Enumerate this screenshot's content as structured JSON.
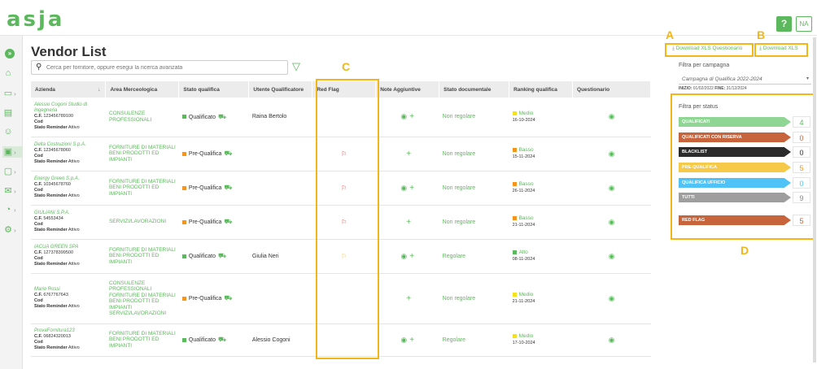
{
  "app": {
    "logo": "asja",
    "help": "?",
    "user_initials": "NA"
  },
  "page": {
    "title": "Vendor List"
  },
  "search": {
    "placeholder": "Cerca per fornitore, oppure esegui la ricerca avanzata"
  },
  "table": {
    "columns": [
      "Azienda",
      "Area Merceologica",
      "Stato qualifica",
      "Utente Qualificatore",
      "Red Flag",
      "Note Aggiuntive",
      "Stato documentale",
      "Ranking qualifica",
      "Questionario"
    ],
    "sort_arrow": "↓",
    "rows": [
      {
        "name": "Alessio Cogoni Studio di Ingegneria",
        "cf": "123456789100",
        "cod": "",
        "reminder": "Attivo",
        "area": "CONSULENZE PROFESSIONALI",
        "stato": "Qualificato",
        "stato_color": "#5cb85c",
        "utente": "Raina Bertolo",
        "flag": "",
        "flag_color": "",
        "note_eye": true,
        "doc": "Non regolare",
        "rank": "Medio",
        "rank_color": "#f5e11c",
        "rank_date": "16-10-2024"
      },
      {
        "name": "Delta Costruzioni S.p.A.",
        "cf": "12345678060",
        "cod": "",
        "reminder": "Attivo",
        "area": "FORNITURE DI MATERIALI BENI PRODOTTI ED IMPIANTI",
        "stato": "Pre-Qualifica",
        "stato_color": "#f7941d",
        "utente": "",
        "flag": "⚐",
        "flag_color": "#d9534f",
        "note_eye": false,
        "doc": "Non regolare",
        "rank": "Basso",
        "rank_color": "#f7941d",
        "rank_date": "15-11-2024"
      },
      {
        "name": "Energy Green S.p.A.",
        "cf": "10345678760",
        "cod": "",
        "reminder": "Attivo",
        "area": "FORNITURE DI MATERIALI BENI PRODOTTI ED IMPIANTI",
        "stato": "Pre-Qualifica",
        "stato_color": "#f7941d",
        "utente": "",
        "flag": "⚐",
        "flag_color": "#d9534f",
        "note_eye": true,
        "doc": "Non regolare",
        "rank": "Basso",
        "rank_color": "#f7941d",
        "rank_date": "26-11-2024"
      },
      {
        "name": "GIULIANI S.P.A.",
        "cf": "54553434",
        "cod": "",
        "reminder": "Attivo",
        "area": "SERVIZI/LAVORAZIONI",
        "stato": "Pre-Qualifica",
        "stato_color": "#f7941d",
        "utente": "",
        "flag": "⚐",
        "flag_color": "#d9534f",
        "note_eye": false,
        "doc": "Non regolare",
        "rank": "Basso",
        "rank_color": "#f7941d",
        "rank_date": "21-11-2024"
      },
      {
        "name": "IACUA GREEN SPA",
        "cf": "127378399500",
        "cod": "",
        "reminder": "Attivo",
        "area": "FORNITURE DI MATERIALI BENI PRODOTTI ED IMPIANTI",
        "stato": "Qualificato",
        "stato_color": "#5cb85c",
        "utente": "Giulia Neri",
        "flag": "⚐",
        "flag_color": "#f2c94c",
        "note_eye": true,
        "doc": "Regolare",
        "rank": "Alto",
        "rank_color": "#5cb85c",
        "rank_date": "08-11-2024"
      },
      {
        "name": "Mario Rossi",
        "cf": "6767767643",
        "cod": "",
        "reminder": "Attivo",
        "area": "CONSULENZE PROFESSIONALI FORNITURE DI MATERIALI BENI PRODOTTI ED IMPIANTI SERVIZI/LAVORAZIONI",
        "stato": "Pre-Qualifica",
        "stato_color": "#f7941d",
        "utente": "",
        "flag": "",
        "flag_color": "",
        "note_eye": false,
        "doc": "Non regolare",
        "rank": "Medio",
        "rank_color": "#f5e11c",
        "rank_date": "21-11-2024"
      },
      {
        "name": "ProvaFornitura123",
        "cf": "06824320013",
        "cod": "",
        "reminder": "Attivo",
        "area": "FORNITURE DI MATERIALI BENI PRODOTTI ED IMPIANTI",
        "stato": "Qualificato",
        "stato_color": "#5cb85c",
        "utente": "Alessio Cogoni",
        "flag": "",
        "flag_color": "",
        "note_eye": true,
        "doc": "Regolare",
        "rank": "Medio",
        "rank_color": "#f5e11c",
        "rank_date": "17-10-2024"
      }
    ]
  },
  "labels": {
    "cf": "C.F.",
    "cod": "Cod",
    "reminder": "Stato Reminder"
  },
  "downloads": {
    "questionario": "Download XLS Questionario",
    "xls": "Download XLS"
  },
  "campaign": {
    "label": "Filtra per campagna",
    "selected": "Campagna di Qualifica 2022-2024",
    "inizio_label": "INIZIO:",
    "inizio": "01/02/2022",
    "fine_label": "FINE:",
    "fine": "31/12/2024"
  },
  "status_filter": {
    "label": "Filtra per status",
    "items": [
      {
        "label": "QUALIFICATI",
        "count": "4",
        "color": "#8fd694",
        "count_color": "#5cb85c"
      },
      {
        "label": "QUALIFICATI CON RISERVA",
        "count": "0",
        "color": "#c8643c",
        "count_color": "#c8643c"
      },
      {
        "label": "BLACKLIST",
        "count": "0",
        "color": "#2b2b2b",
        "count_color": "#333333"
      },
      {
        "label": "PRE-QUALIFICA",
        "count": "5",
        "color": "#f7c948",
        "count_color": "#f7941d"
      },
      {
        "label": "QUALIFICA UFFICIO",
        "count": "0",
        "color": "#4fc3f7",
        "count_color": "#4fc3f7"
      },
      {
        "label": "TUTTI",
        "count": "9",
        "color": "#9e9e9e",
        "count_color": "#888888"
      },
      {
        "label": "RED FLAG",
        "count": "5",
        "color": "#c8643c",
        "count_color": "#c8643c"
      }
    ]
  },
  "annotations": {
    "a": "A",
    "b": "B",
    "c": "C",
    "d": "D"
  },
  "icons": {
    "search": "search-icon",
    "filter": "filter-icon",
    "eye": "eye-icon",
    "plus": "plus-icon",
    "flag": "flag-icon",
    "download": "download-icon"
  }
}
